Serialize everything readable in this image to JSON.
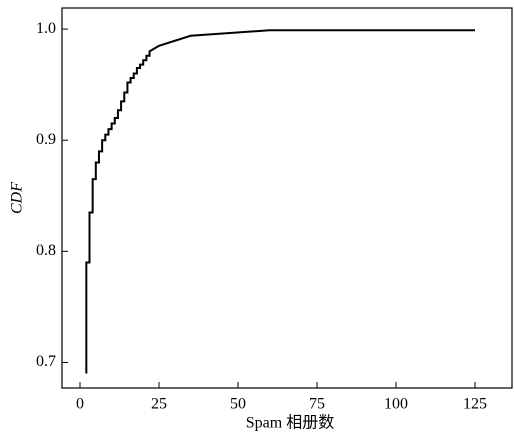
{
  "chart_data": {
    "type": "line",
    "x_label": "Spam 相册数",
    "y_label": "CDF",
    "series": [
      {
        "name": "CDF",
        "color": "#000000",
        "x": [
          2,
          2,
          3,
          3,
          4,
          4,
          5,
          5,
          6,
          6,
          7,
          7,
          8,
          8,
          9,
          9,
          10,
          10,
          11,
          11,
          12,
          12,
          13,
          13,
          14,
          14,
          15,
          15,
          16,
          16,
          17,
          17,
          18,
          18,
          19,
          19,
          20,
          20,
          21,
          21,
          22,
          22,
          25,
          35,
          60,
          125
        ],
        "values": [
          0.69,
          0.79,
          0.79,
          0.835,
          0.835,
          0.865,
          0.865,
          0.88,
          0.88,
          0.89,
          0.89,
          0.9,
          0.9,
          0.905,
          0.905,
          0.91,
          0.91,
          0.915,
          0.915,
          0.92,
          0.92,
          0.927,
          0.927,
          0.935,
          0.935,
          0.943,
          0.943,
          0.952,
          0.952,
          0.956,
          0.956,
          0.96,
          0.96,
          0.965,
          0.965,
          0.968,
          0.968,
          0.972,
          0.972,
          0.976,
          0.976,
          0.98,
          0.985,
          0.994,
          0.999,
          0.999
        ]
      }
    ],
    "xlim": [
      -5.7,
      136.7
    ],
    "xticks": [
      0,
      25,
      50,
      75,
      100,
      125
    ],
    "ylim": [
      0.677,
      1.019
    ],
    "yticks": [
      0.7,
      0.8,
      0.9,
      {
        "value": 1,
        "label": "1.0"
      }
    ],
    "grid": false
  }
}
